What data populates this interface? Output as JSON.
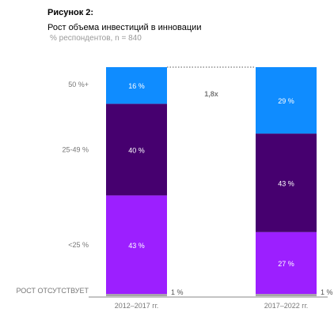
{
  "header": {
    "figure_label": "Рисунок 2:",
    "title": "Рост объема инвестиций в инновации",
    "subtitle": "% респондентов, n = 840"
  },
  "chart_data": {
    "type": "bar",
    "stacked": true,
    "categories": [
      "2012–2017 гг.",
      "2017–2022 гг."
    ],
    "series": [
      {
        "name": "РОСТ ОТСУТСТВУЕТ",
        "values": [
          1,
          1
        ],
        "labels": [
          "1 %",
          "1 %"
        ],
        "color": "#a6a6a6"
      },
      {
        "name": "<25 %",
        "values": [
          43,
          27
        ],
        "labels": [
          "43 %",
          "27 %"
        ],
        "color": "#9c1fff"
      },
      {
        "name": "25-49 %",
        "values": [
          40,
          43
        ],
        "labels": [
          "40 %",
          "43 %"
        ],
        "color": "#46006f"
      },
      {
        "name": "50 %+",
        "values": [
          16,
          29
        ],
        "labels": [
          "16 %",
          "29 %"
        ],
        "color": "#0f8cff"
      }
    ],
    "annotation": "1,8x",
    "ylim": [
      0,
      100
    ],
    "grid": false,
    "legend": "left"
  }
}
